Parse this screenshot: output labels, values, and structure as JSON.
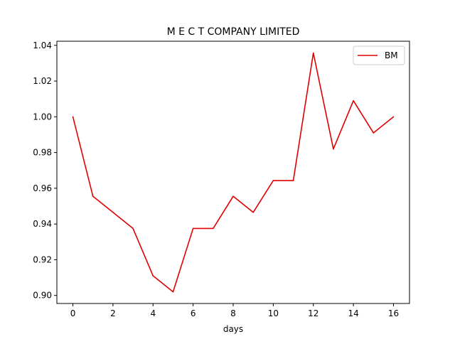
{
  "chart_data": {
    "type": "line",
    "title": "M E C T COMPANY LIMITED",
    "xlabel": "days",
    "ylabel": "",
    "xlim": [
      -0.8,
      16.8
    ],
    "ylim": [
      0.8955,
      1.0423
    ],
    "xticks": [
      0,
      2,
      4,
      6,
      8,
      10,
      12,
      14,
      16
    ],
    "yticks": [
      0.9,
      0.92,
      0.94,
      0.96,
      0.98,
      1.0,
      1.02,
      1.04
    ],
    "ytick_labels": [
      "0.90",
      "0.92",
      "0.94",
      "0.96",
      "0.98",
      "1.00",
      "1.02",
      "1.04"
    ],
    "grid": false,
    "legend_position": "top-right",
    "x": [
      0,
      1,
      2,
      3,
      4,
      5,
      6,
      7,
      8,
      9,
      10,
      11,
      12,
      13,
      14,
      15,
      16
    ],
    "series": [
      {
        "name": "BM",
        "color": "#e00000",
        "values": [
          1.0,
          0.9555,
          0.9465,
          0.9375,
          0.911,
          0.902,
          0.9375,
          0.9375,
          0.9555,
          0.9465,
          0.9643,
          0.9643,
          1.0357,
          0.982,
          1.009,
          0.991,
          1.0
        ]
      }
    ]
  }
}
